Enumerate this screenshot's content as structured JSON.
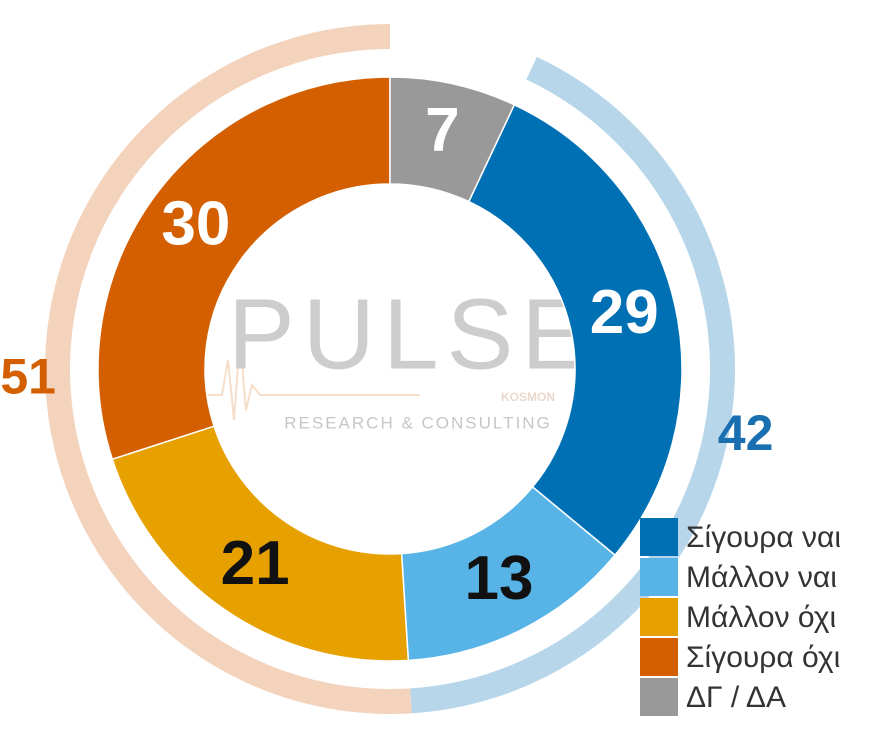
{
  "chart_data": {
    "type": "donut",
    "categories": [
      "Σίγουρα ναι",
      "Μάλλον ναι",
      "Μάλλον όχι",
      "Σίγουρα όχι",
      "ΔΓ / ΔΑ"
    ],
    "values": [
      29,
      13,
      21,
      30,
      7
    ],
    "colors": [
      "#0070b5",
      "#58b4e6",
      "#e6a100",
      "#d35f00",
      "#999999"
    ],
    "label_colors": [
      "#ffffff",
      "#111111",
      "#111111",
      "#ffffff",
      "#ffffff"
    ],
    "groups": [
      {
        "value": 42,
        "color": "#b7d6ea",
        "label_color": "#1a6fb0"
      },
      {
        "value": 51,
        "color": "#f4d3bd",
        "label_color": "#d35f00"
      }
    ],
    "watermark": {
      "title": "PULSE",
      "brand": "KOSMON",
      "subtitle": "RESEARCH & CONSULTING"
    },
    "legend": "bottom-right"
  }
}
